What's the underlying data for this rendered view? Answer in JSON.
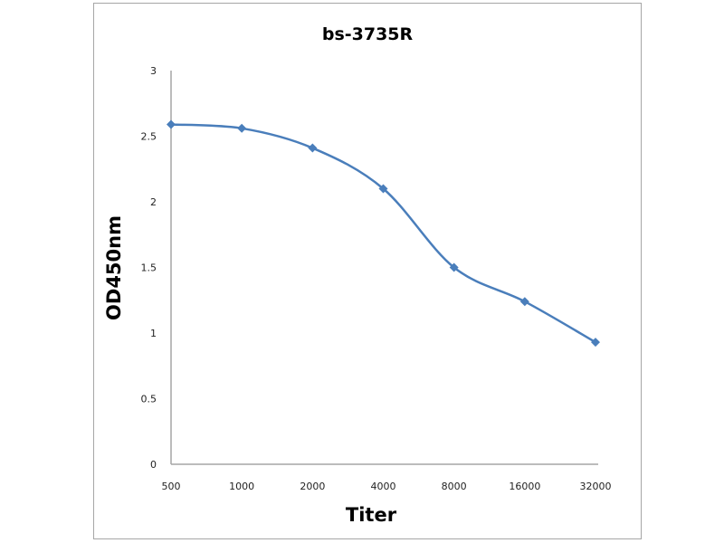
{
  "chart_data": {
    "type": "line",
    "title": "bs-3735R",
    "xlabel": "Titer",
    "ylabel": "OD450nm",
    "categories": [
      "500",
      "1000",
      "2000",
      "4000",
      "8000",
      "16000",
      "32000"
    ],
    "series": [
      {
        "values": [
          2.59,
          2.56,
          2.41,
          2.1,
          1.5,
          1.24,
          0.93
        ]
      }
    ],
    "yticks": [
      "0",
      "0.5",
      "1",
      "1.5",
      "2",
      "2.5",
      "3"
    ],
    "ylim": [
      0,
      3
    ],
    "grid": false,
    "legend": "none",
    "smooth": true,
    "marker": "diamond",
    "colors": {
      "series": "#4a7ebb",
      "axis": "#a6a6a6"
    }
  }
}
